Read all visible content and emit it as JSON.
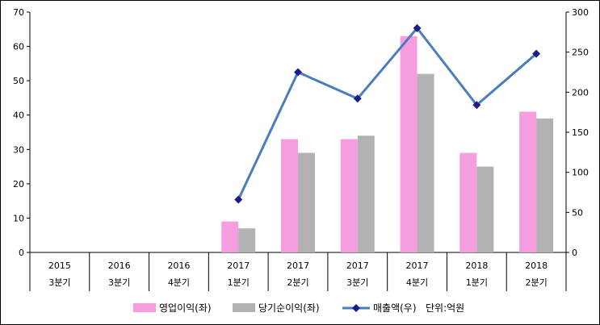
{
  "chart_data": {
    "type": "bar",
    "categories": [
      [
        "2015",
        "3분기"
      ],
      [
        "2016",
        "3분기"
      ],
      [
        "2016",
        "4분기"
      ],
      [
        "2017",
        "1분기"
      ],
      [
        "2017",
        "2분기"
      ],
      [
        "2017",
        "3분기"
      ],
      [
        "2017",
        "4분기"
      ],
      [
        "2018",
        "1분기"
      ],
      [
        "2018",
        "2분기"
      ]
    ],
    "series": [
      {
        "name": "영업이익(좌)",
        "type": "bar",
        "axis": "left",
        "color": "#f49ee0",
        "values": [
          null,
          null,
          null,
          9,
          33,
          33,
          63,
          29,
          41
        ]
      },
      {
        "name": "당기순이익(좌)",
        "type": "bar",
        "axis": "left",
        "color": "#b2b2b2",
        "values": [
          null,
          null,
          null,
          7,
          29,
          34,
          52,
          25,
          39
        ]
      },
      {
        "name": "매출액(우)",
        "type": "line",
        "axis": "right",
        "color": "#4a7ebb",
        "marker_color": "#1f1a8c",
        "values": [
          null,
          null,
          null,
          66,
          225,
          192,
          280,
          184,
          248
        ]
      }
    ],
    "left_axis": {
      "min": 0,
      "max": 70,
      "step": 10,
      "ticks": [
        "0",
        "10",
        "20",
        "30",
        "40",
        "50",
        "60",
        "70"
      ]
    },
    "right_axis": {
      "min": 0,
      "max": 300,
      "step": 50,
      "ticks": [
        "0",
        "50",
        "100",
        "150",
        "200",
        "250",
        "300"
      ]
    },
    "legend": {
      "position": "bottom",
      "unit_note": "단위:억원"
    },
    "grid": false
  }
}
